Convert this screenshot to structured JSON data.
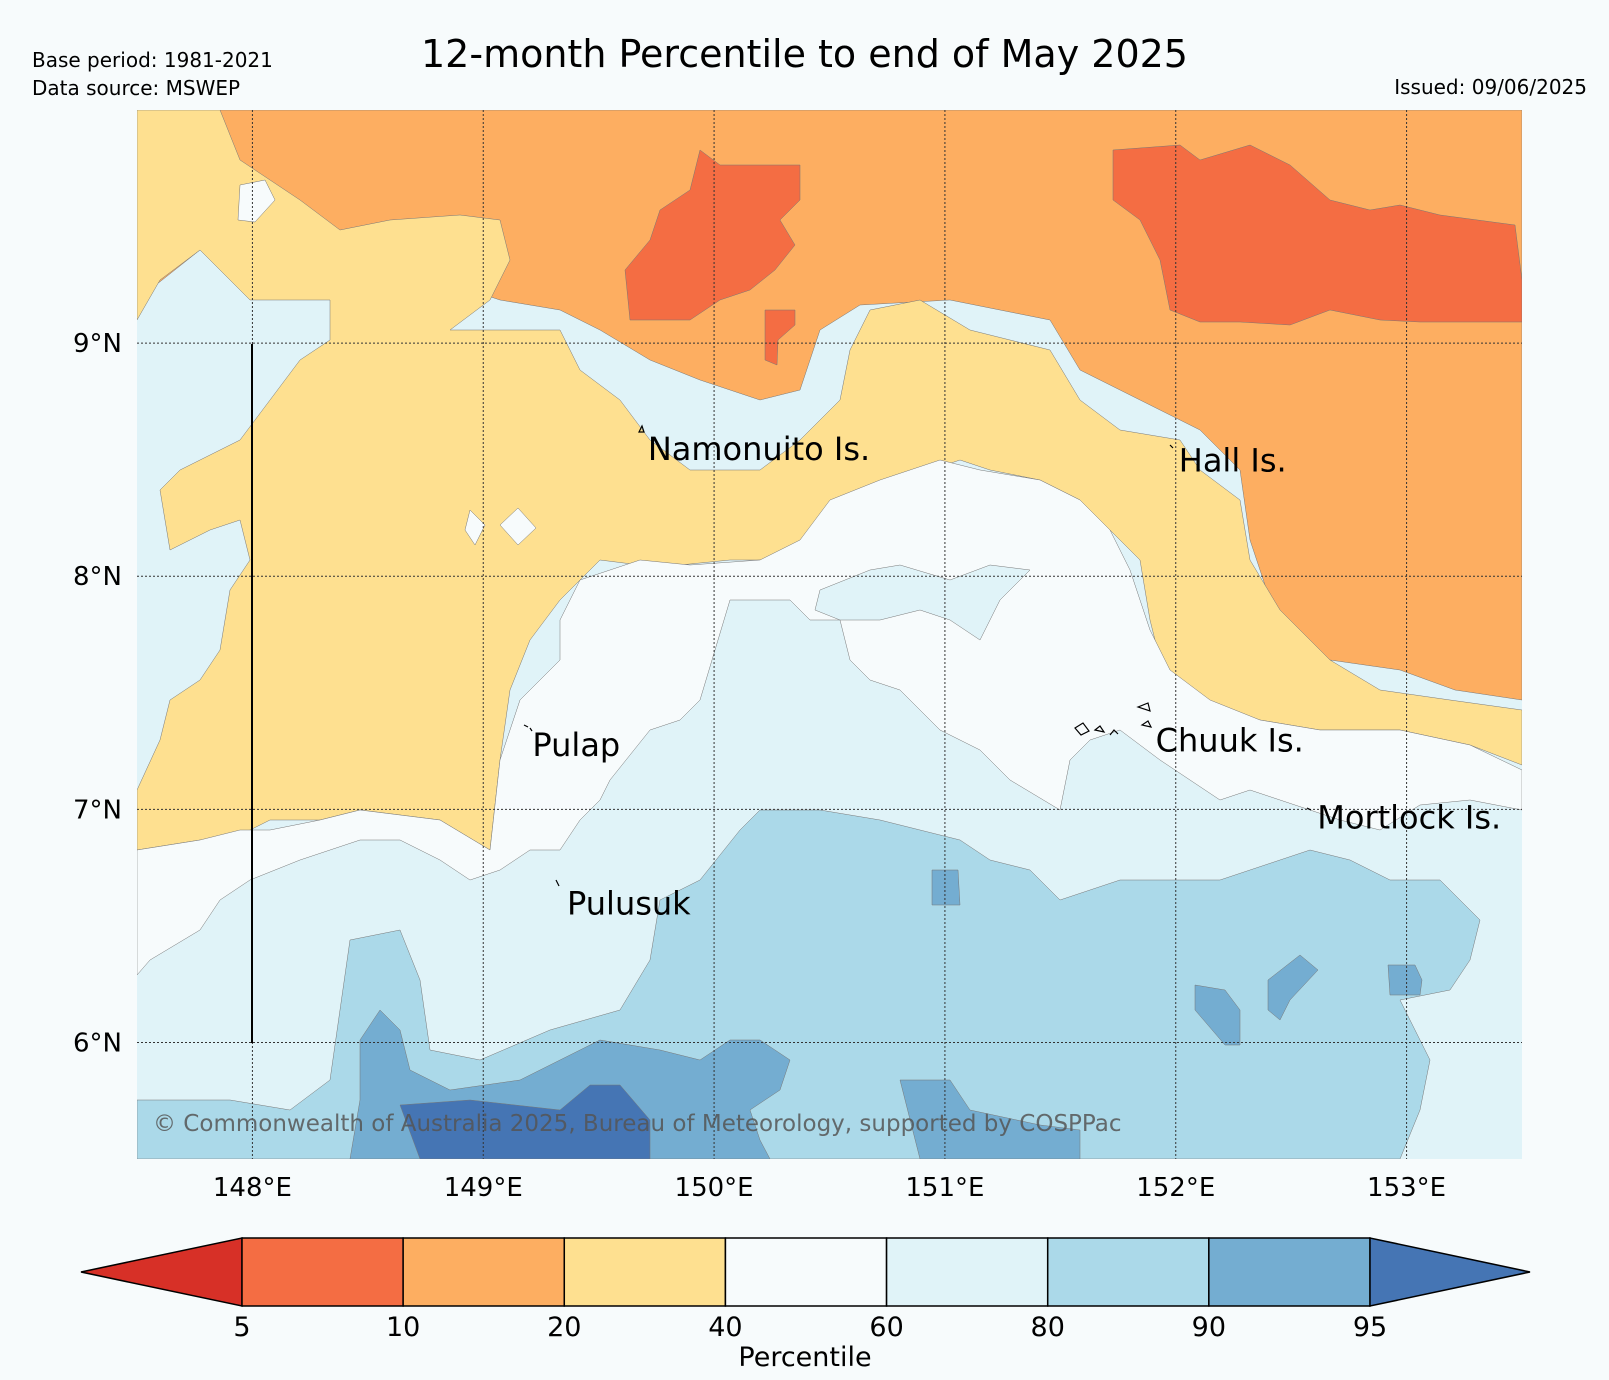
{
  "header": {
    "title": "12-month Percentile to end of May 2025",
    "base_period": "Base period: 1981-2021",
    "data_source": "Data source: MSWEP",
    "issued": "Issued: 09/06/2025"
  },
  "map": {
    "lon_range": [
      147.5,
      153.5
    ],
    "lat_range": [
      5.5,
      10.0
    ],
    "lon_ticks": [
      148,
      149,
      150,
      151,
      152,
      153
    ],
    "lat_ticks": [
      6,
      7,
      8,
      9
    ],
    "lon_labels": [
      "148°E",
      "149°E",
      "150°E",
      "151°E",
      "152°E",
      "153°E"
    ],
    "lat_labels": [
      "6°N",
      "7°N",
      "8°N",
      "9°N"
    ],
    "gridlines": true,
    "copyright": "© Commonwealth of Australia 2025, Bureau of Meteorology, supported by COSPPac",
    "places": [
      {
        "name": "Namonuito Is.",
        "lon": 149.7,
        "lat": 8.55
      },
      {
        "name": "Hall Is.",
        "lon": 152.0,
        "lat": 8.5
      },
      {
        "name": "Pulap",
        "lon": 149.2,
        "lat": 7.28
      },
      {
        "name": "Chuuk Is.",
        "lon": 151.9,
        "lat": 7.3
      },
      {
        "name": "Mortlock Is.",
        "lon": 152.6,
        "lat": 6.97
      },
      {
        "name": "Pulusuk",
        "lon": 149.35,
        "lat": 6.6
      }
    ]
  },
  "colorbar": {
    "label": "Percentile",
    "ticks": [
      "5",
      "10",
      "20",
      "40",
      "60",
      "80",
      "90",
      "95"
    ],
    "colors": [
      "#d73027",
      "#f46d43",
      "#fdae61",
      "#fee090",
      "#f7fbfc",
      "#e0f3f8",
      "#abd9e9",
      "#74add1",
      "#4575b4"
    ],
    "extend": "both"
  }
}
